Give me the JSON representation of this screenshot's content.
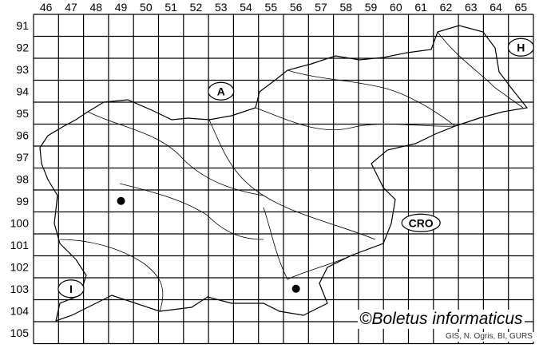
{
  "map": {
    "grid_columns": [
      "46",
      "47",
      "48",
      "49",
      "50",
      "51",
      "52",
      "53",
      "54",
      "55",
      "56",
      "57",
      "58",
      "59",
      "60",
      "61",
      "62",
      "63",
      "64",
      "65"
    ],
    "grid_rows": [
      "91",
      "92",
      "93",
      "94",
      "95",
      "96",
      "97",
      "98",
      "99",
      "100",
      "101",
      "102",
      "103",
      "104",
      "105"
    ],
    "country_labels": [
      {
        "text": "A",
        "col": "53",
        "row": "94"
      },
      {
        "text": "H",
        "col": "65",
        "row": "92"
      },
      {
        "text": "CRO",
        "col": "61",
        "row": "100"
      },
      {
        "text": "I",
        "col": "47",
        "row": "103"
      }
    ],
    "occurrence_points": [
      {
        "col": "49",
        "row": "99"
      },
      {
        "col": "56",
        "row": "103"
      }
    ],
    "credit": "©Boletus informaticus",
    "source": "GIS, N. Ogris, BI, GURS"
  }
}
